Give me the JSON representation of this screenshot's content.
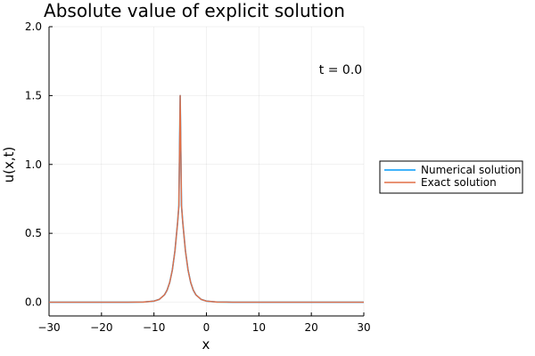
{
  "chart_data": {
    "type": "line",
    "title": "Absolute value of explicit solution",
    "xlabel": "x",
    "ylabel": "u(x,t)",
    "xlim": [
      -30,
      30
    ],
    "ylim": [
      -0.1,
      2.0
    ],
    "xticks": [
      "−30",
      "−20",
      "−10",
      "0",
      "10",
      "20",
      "30"
    ],
    "xtick_values": [
      -30,
      -20,
      -10,
      0,
      10,
      20,
      30
    ],
    "yticks": [
      "0.0",
      "0.5",
      "1.0",
      "1.5",
      "2.0"
    ],
    "ytick_values": [
      0.0,
      0.5,
      1.0,
      1.5,
      2.0
    ],
    "grid": true,
    "legend_position": "outside-right",
    "annotation": "t = 0.0",
    "x": [
      -30,
      -25,
      -20,
      -15,
      -12,
      -10,
      -9,
      -8,
      -7.5,
      -7,
      -6.5,
      -6,
      -5.5,
      -5.25,
      -5,
      -4.75,
      -4.5,
      -4,
      -3.5,
      -3,
      -2.5,
      -2,
      -1,
      0,
      2,
      5,
      10,
      15,
      20,
      25,
      30
    ],
    "series": [
      {
        "name": "Numerical solution",
        "color": "#009AFA",
        "values": [
          0.0,
          0.0,
          0.0,
          0.0,
          0.001,
          0.008,
          0.02,
          0.053,
          0.087,
          0.143,
          0.233,
          0.372,
          0.575,
          0.702,
          1.5,
          0.702,
          0.575,
          0.372,
          0.233,
          0.143,
          0.087,
          0.053,
          0.02,
          0.008,
          0.001,
          0.0,
          0.0,
          0.0,
          0.0,
          0.0,
          0.0
        ]
      },
      {
        "name": "Exact solution",
        "color": "#E26F46",
        "values": [
          0.0,
          0.0,
          0.0,
          0.0,
          0.001,
          0.008,
          0.02,
          0.053,
          0.087,
          0.143,
          0.233,
          0.372,
          0.575,
          0.702,
          1.5,
          0.702,
          0.575,
          0.372,
          0.233,
          0.143,
          0.087,
          0.053,
          0.02,
          0.008,
          0.001,
          0.0,
          0.0,
          0.0,
          0.0,
          0.0,
          0.0
        ]
      }
    ]
  }
}
